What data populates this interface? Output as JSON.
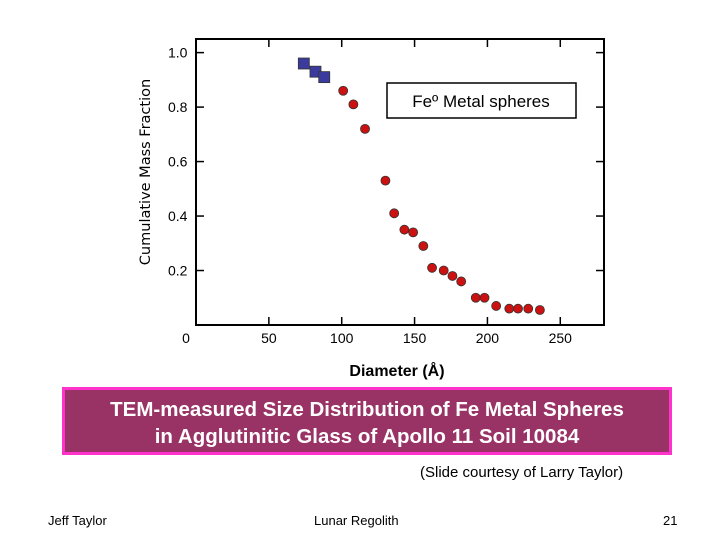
{
  "chart_data": {
    "type": "scatter",
    "xlabel": "Diameter (Å)",
    "ylabel": "Cumulative Mass Fraction",
    "xlim": [
      0,
      280
    ],
    "ylim": [
      0,
      1.05
    ],
    "x_ticks": [
      {
        "value": 0,
        "label": "0"
      },
      {
        "value": 50,
        "label": "50"
      },
      {
        "value": 100,
        "label": "100"
      },
      {
        "value": 150,
        "label": "150"
      },
      {
        "value": 200,
        "label": "200"
      },
      {
        "value": 250,
        "label": "250"
      }
    ],
    "y_ticks": [
      {
        "value": 0.2,
        "label": "0.2"
      },
      {
        "value": 0.4,
        "label": "0.4"
      },
      {
        "value": 0.6,
        "label": "0.6"
      },
      {
        "value": 0.8,
        "label": "0.8"
      },
      {
        "value": 1.0,
        "label": "1.0"
      }
    ],
    "legend_box_text": "Feº Metal spheres",
    "legend_position": "top-right",
    "series": [
      {
        "marker": "square",
        "color": "#3b3b9e",
        "points": [
          [
            74,
            0.96
          ],
          [
            82,
            0.93
          ],
          [
            88,
            0.91
          ]
        ]
      },
      {
        "marker": "circle",
        "color": "#cc1111",
        "points": [
          [
            101,
            0.86
          ],
          [
            108,
            0.81
          ],
          [
            116,
            0.72
          ],
          [
            130,
            0.53
          ],
          [
            136,
            0.41
          ],
          [
            143,
            0.35
          ],
          [
            149,
            0.34
          ],
          [
            156,
            0.29
          ],
          [
            162,
            0.21
          ],
          [
            170,
            0.2
          ],
          [
            176,
            0.18
          ],
          [
            182,
            0.16
          ],
          [
            192,
            0.1
          ],
          [
            198,
            0.1
          ],
          [
            206,
            0.07
          ],
          [
            215,
            0.06
          ],
          [
            221,
            0.06
          ],
          [
            228,
            0.06
          ],
          [
            236,
            0.055
          ]
        ]
      }
    ]
  },
  "banner": {
    "line1": "TEM-measured Size Distribution of Fe Metal Spheres",
    "line2": "in Agglutinitic Glass of Apollo 11 Soil 10084"
  },
  "credit": "(Slide courtesy of Larry Taylor)",
  "footer": {
    "left": "Jeff Taylor",
    "center": "Lunar Regolith",
    "page": "21"
  },
  "colors": {
    "banner_bg": "#993366",
    "banner_border": "#ff33cc",
    "marker_circle": "#cc1111",
    "marker_square": "#3b3b9e"
  }
}
